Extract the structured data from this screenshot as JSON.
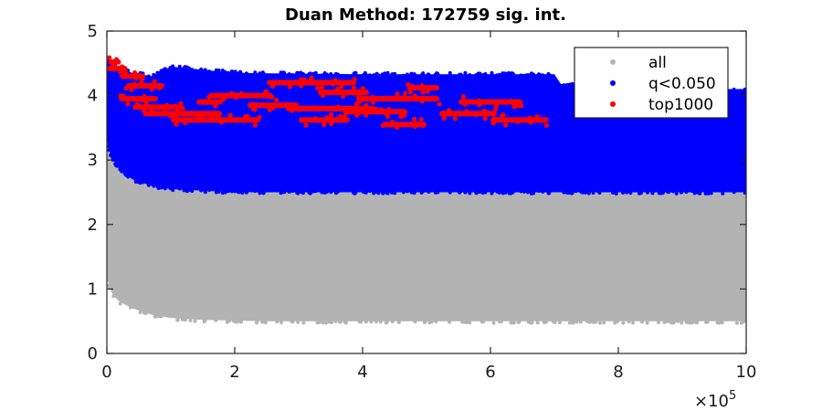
{
  "chart_data": {
    "type": "scatter",
    "title": "Duan Method: 172759 sig. int.",
    "xlabel": "",
    "ylabel": "",
    "xlim": [
      0,
      1000000
    ],
    "ylim": [
      0,
      5
    ],
    "x_ticks": [
      0,
      200000,
      400000,
      600000,
      800000,
      1000000
    ],
    "x_tick_labels": [
      "0",
      "2",
      "4",
      "6",
      "8",
      "10"
    ],
    "x_exponent_base": "×10",
    "x_exponent_power": "5",
    "y_ticks": [
      0,
      1,
      2,
      3,
      4,
      5
    ],
    "y_tick_labels": [
      "0",
      "1",
      "2",
      "3",
      "4",
      "5"
    ],
    "grid": false,
    "legend_position": "top-right",
    "series": [
      {
        "name": "all",
        "color": "#b3b3b3",
        "band": {
          "x": [
            0,
            5000,
            10000,
            20000,
            40000,
            70000,
            100000,
            150000,
            250000,
            400000,
            600000,
            800000,
            1000000
          ],
          "low": [
            1.2,
            1.0,
            0.9,
            0.8,
            0.7,
            0.6,
            0.55,
            0.52,
            0.5,
            0.5,
            0.5,
            0.5,
            0.5
          ],
          "high": [
            4.2,
            3.9,
            3.5,
            3.2,
            3.0,
            2.9,
            2.85,
            2.8,
            2.8,
            2.8,
            2.8,
            2.8,
            2.8
          ]
        }
      },
      {
        "name": "q<0.050",
        "color": "#0000ff",
        "band": {
          "x": [
            0,
            5000,
            10000,
            20000,
            40000,
            70000,
            100000,
            200000,
            400000,
            600000,
            700000,
            710000,
            800000,
            960000,
            970000,
            1000000
          ],
          "low": [
            3.3,
            3.1,
            3.0,
            2.85,
            2.7,
            2.6,
            2.55,
            2.5,
            2.5,
            2.5,
            2.5,
            2.5,
            2.5,
            2.5,
            2.5,
            2.5
          ],
          "high": [
            4.55,
            4.5,
            4.48,
            4.42,
            4.35,
            4.3,
            4.45,
            4.35,
            4.33,
            4.33,
            4.33,
            4.18,
            4.18,
            4.18,
            4.1,
            4.1
          ]
        }
      },
      {
        "name": "top1000",
        "color": "#ff0000",
        "clusters": [
          {
            "x": [
              2000,
              22000
            ],
            "y": 4.52
          },
          {
            "x": [
              0,
              32000
            ],
            "y": 4.42
          },
          {
            "x": [
              20000,
              60000
            ],
            "y": 4.3
          },
          {
            "x": [
              30000,
              90000
            ],
            "y": 4.15
          },
          {
            "x": [
              20000,
              80000
            ],
            "y": 3.95
          },
          {
            "x": [
              40000,
              120000
            ],
            "y": 3.82
          },
          {
            "x": [
              60000,
              180000
            ],
            "y": 3.72
          },
          {
            "x": [
              100000,
              240000
            ],
            "y": 3.62
          },
          {
            "x": [
              140000,
              180000
            ],
            "y": 3.9
          },
          {
            "x": [
              160000,
              260000
            ],
            "y": 4.0
          },
          {
            "x": [
              220000,
              300000
            ],
            "y": 3.85
          },
          {
            "x": [
              250000,
              390000
            ],
            "y": 4.2
          },
          {
            "x": [
              280000,
              420000
            ],
            "y": 3.8
          },
          {
            "x": [
              300000,
              380000
            ],
            "y": 3.62
          },
          {
            "x": [
              330000,
              410000
            ],
            "y": 4.05
          },
          {
            "x": [
              370000,
              470000
            ],
            "y": 3.75
          },
          {
            "x": [
              390000,
              520000
            ],
            "y": 3.95
          },
          {
            "x": [
              430000,
              500000
            ],
            "y": 3.55
          },
          {
            "x": [
              470000,
              520000
            ],
            "y": 4.12
          },
          {
            "x": [
              520000,
              610000
            ],
            "y": 3.72
          },
          {
            "x": [
              550000,
              650000
            ],
            "y": 3.9
          },
          {
            "x": [
              600000,
              690000
            ],
            "y": 3.62
          }
        ]
      }
    ]
  }
}
